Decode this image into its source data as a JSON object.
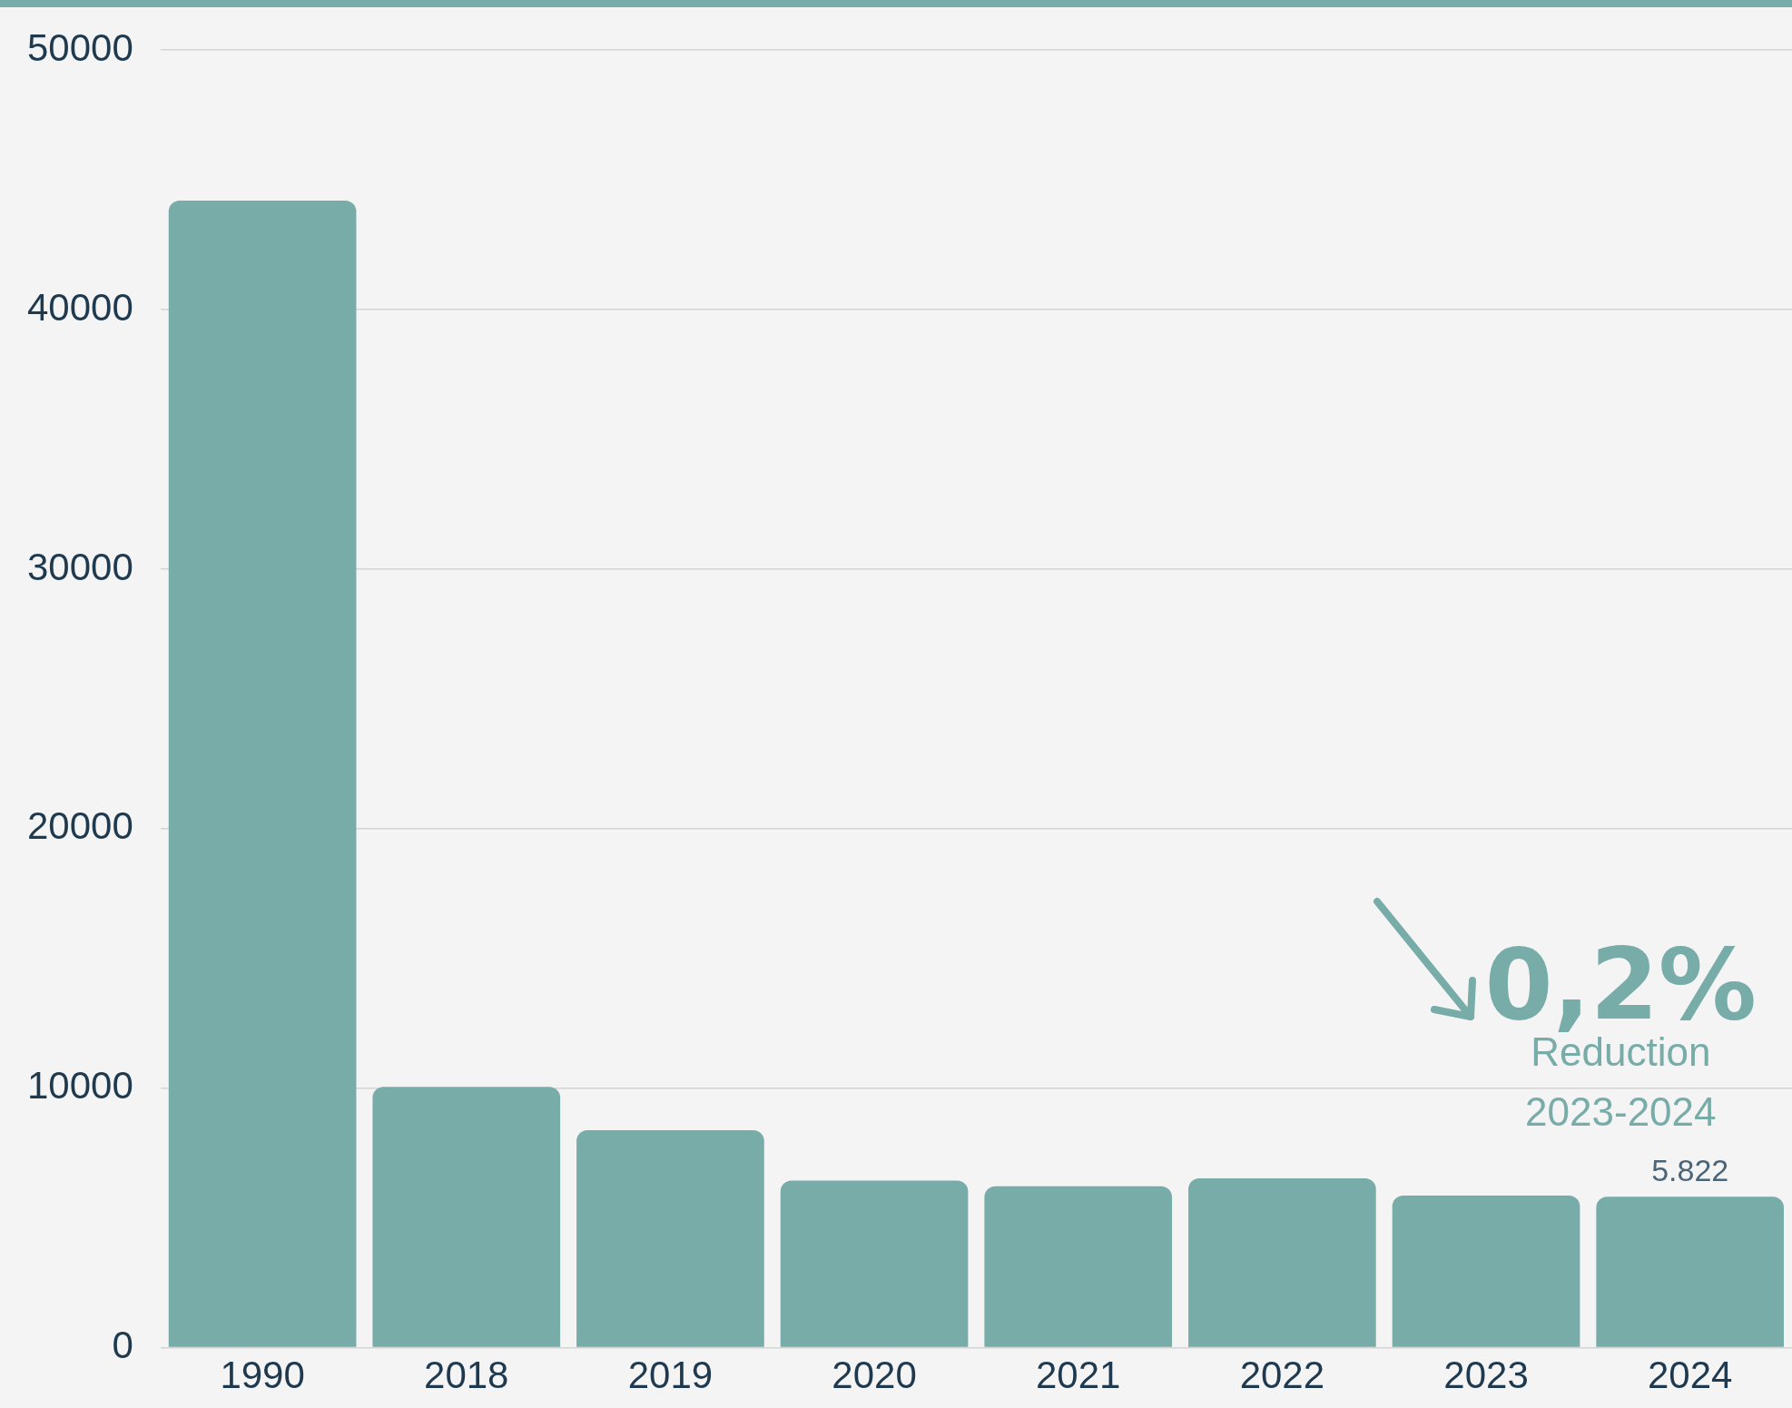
{
  "chart_data": {
    "type": "bar",
    "categories": [
      "1990",
      "2018",
      "2019",
      "2020",
      "2021",
      "2022",
      "2023",
      "2024"
    ],
    "values": [
      44200,
      10050,
      8380,
      6440,
      6220,
      6530,
      5860,
      5822
    ],
    "value_labels": [
      null,
      null,
      null,
      null,
      null,
      null,
      null,
      "5.822"
    ],
    "color": "#78aca8",
    "ylim": [
      0,
      50000
    ],
    "yticks": [
      0,
      10000,
      20000,
      30000,
      40000,
      50000
    ],
    "grid": "y",
    "legend": false,
    "annotations": [
      "0,2%",
      "Reduction",
      "2023-2024"
    ]
  }
}
